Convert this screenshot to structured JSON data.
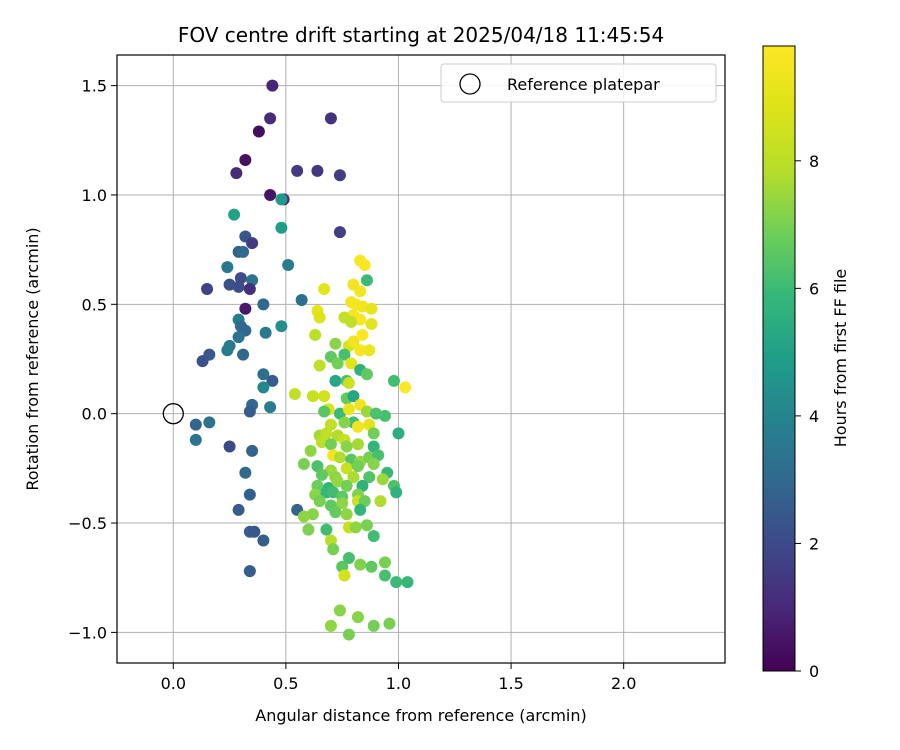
{
  "chart_data": {
    "type": "scatter",
    "title": "FOV centre drift starting at 2025/04/18 11:45:54",
    "xlabel": "Angular distance from reference (arcmin)",
    "ylabel": "Rotation from reference (arcmin)",
    "xlim": [
      -0.25,
      2.45
    ],
    "ylim": [
      -1.14,
      1.64
    ],
    "x_ticks": [
      0.0,
      0.5,
      1.0,
      1.5,
      2.0
    ],
    "x_tick_labels": [
      "0.0",
      "0.5",
      "1.0",
      "1.5",
      "2.0"
    ],
    "y_ticks": [
      -1.0,
      -0.5,
      0.0,
      0.5,
      1.0,
      1.5
    ],
    "y_tick_labels": [
      "−1.0",
      "−0.5",
      "0.0",
      "0.5",
      "1.0",
      "1.5"
    ],
    "grid": true,
    "legend": {
      "position": "top-right",
      "entries": [
        "Reference platepar"
      ]
    },
    "colorbar": {
      "label": "Hours from first FF file",
      "range": [
        0,
        9.8
      ],
      "ticks": [
        0,
        2,
        4,
        6,
        8
      ],
      "tick_labels": [
        "0",
        "2",
        "4",
        "6",
        "8"
      ],
      "colormap": "viridis"
    },
    "reference_point": {
      "x": 0.0,
      "y": 0.0
    },
    "points": [
      [
        0.44,
        1.5,
        0.9
      ],
      [
        0.43,
        1.35,
        1.1
      ],
      [
        0.38,
        1.29,
        0.3
      ],
      [
        0.7,
        1.35,
        1.3
      ],
      [
        0.32,
        1.16,
        0.4
      ],
      [
        0.55,
        1.11,
        1.5
      ],
      [
        0.64,
        1.11,
        1.4
      ],
      [
        0.74,
        1.09,
        1.6
      ],
      [
        0.28,
        1.1,
        1.1
      ],
      [
        0.43,
        1.0,
        0.5
      ],
      [
        0.49,
        0.98,
        1.0
      ],
      [
        0.48,
        0.98,
        4.8
      ],
      [
        0.27,
        0.91,
        5.1
      ],
      [
        0.48,
        0.85,
        4.9
      ],
      [
        0.74,
        0.83,
        1.7
      ],
      [
        0.32,
        0.81,
        2.4
      ],
      [
        0.35,
        0.78,
        1.6
      ],
      [
        0.29,
        0.74,
        2.7
      ],
      [
        0.31,
        0.74,
        3.0
      ],
      [
        0.51,
        0.68,
        3.6
      ],
      [
        0.24,
        0.67,
        3.5
      ],
      [
        0.3,
        0.62,
        2.1
      ],
      [
        0.35,
        0.61,
        3.4
      ],
      [
        0.25,
        0.59,
        2.2
      ],
      [
        0.29,
        0.58,
        2.1
      ],
      [
        0.34,
        0.57,
        1.2
      ],
      [
        0.15,
        0.57,
        1.8
      ],
      [
        0.4,
        0.5,
        3.0
      ],
      [
        0.57,
        0.52,
        3.2
      ],
      [
        0.32,
        0.48,
        0.6
      ],
      [
        0.29,
        0.43,
        3.8
      ],
      [
        0.3,
        0.4,
        3.0
      ],
      [
        0.32,
        0.38,
        2.9
      ],
      [
        0.48,
        0.4,
        4.4
      ],
      [
        0.41,
        0.37,
        3.6
      ],
      [
        0.29,
        0.35,
        3.3
      ],
      [
        0.25,
        0.31,
        3.8
      ],
      [
        0.24,
        0.29,
        3.7
      ],
      [
        0.31,
        0.27,
        2.9
      ],
      [
        0.16,
        0.27,
        2.4
      ],
      [
        0.13,
        0.24,
        2.2
      ],
      [
        0.4,
        0.18,
        3.2
      ],
      [
        0.44,
        0.15,
        2.6
      ],
      [
        0.4,
        0.12,
        4.1
      ],
      [
        0.35,
        0.04,
        3.0
      ],
      [
        0.43,
        0.03,
        3.7
      ],
      [
        0.34,
        0.01,
        2.6
      ],
      [
        0.16,
        -0.04,
        3.3
      ],
      [
        0.1,
        -0.05,
        2.8
      ],
      [
        0.1,
        -0.12,
        3.3
      ],
      [
        0.35,
        -0.17,
        2.8
      ],
      [
        0.25,
        -0.15,
        2.0
      ],
      [
        0.32,
        -0.27,
        3.0
      ],
      [
        0.34,
        -0.37,
        2.7
      ],
      [
        0.29,
        -0.44,
        2.6
      ],
      [
        0.34,
        -0.54,
        2.6
      ],
      [
        0.36,
        -0.54,
        2.4
      ],
      [
        0.4,
        -0.58,
        2.6
      ],
      [
        0.34,
        -0.72,
        2.6
      ],
      [
        0.55,
        -0.44,
        2.8
      ],
      [
        0.67,
        0.57,
        9.0
      ],
      [
        0.64,
        0.47,
        9.1
      ],
      [
        0.65,
        0.44,
        8.8
      ],
      [
        0.83,
        0.7,
        9.6
      ],
      [
        0.85,
        0.68,
        9.7
      ],
      [
        0.8,
        0.59,
        9.4
      ],
      [
        0.83,
        0.56,
        9.5
      ],
      [
        0.86,
        0.61,
        6.0
      ],
      [
        0.79,
        0.51,
        9.5
      ],
      [
        0.81,
        0.5,
        9.6
      ],
      [
        0.84,
        0.49,
        9.4
      ],
      [
        0.88,
        0.48,
        9.1
      ],
      [
        0.8,
        0.45,
        9.6
      ],
      [
        0.83,
        0.43,
        9.7
      ],
      [
        0.76,
        0.44,
        8.2
      ],
      [
        0.79,
        0.42,
        8.1
      ],
      [
        0.88,
        0.41,
        9.0
      ],
      [
        0.84,
        0.36,
        9.8
      ],
      [
        0.63,
        0.36,
        8.0
      ],
      [
        0.72,
        0.32,
        7.2
      ],
      [
        0.78,
        0.31,
        8.7
      ],
      [
        0.8,
        0.33,
        9.4
      ],
      [
        0.83,
        0.29,
        9.5
      ],
      [
        0.87,
        0.29,
        9.3
      ],
      [
        0.7,
        0.26,
        6.6
      ],
      [
        0.76,
        0.27,
        6.2
      ],
      [
        0.73,
        0.23,
        6.9
      ],
      [
        0.65,
        0.22,
        8.1
      ],
      [
        0.79,
        0.23,
        9.0
      ],
      [
        0.83,
        0.2,
        5.6
      ],
      [
        0.86,
        0.18,
        6.6
      ],
      [
        0.72,
        0.15,
        5.2
      ],
      [
        0.77,
        0.15,
        6.2
      ],
      [
        0.78,
        0.14,
        8.4
      ],
      [
        0.98,
        0.15,
        6.1
      ],
      [
        1.03,
        0.12,
        9.8
      ],
      [
        0.54,
        0.09,
        8.1
      ],
      [
        0.62,
        0.08,
        8.3
      ],
      [
        0.67,
        0.08,
        8.6
      ],
      [
        0.77,
        0.07,
        6.7
      ],
      [
        0.8,
        0.08,
        5.2
      ],
      [
        0.83,
        0.04,
        9.4
      ],
      [
        0.69,
        0.02,
        8.8
      ],
      [
        0.67,
        0.01,
        6.5
      ],
      [
        0.74,
        0.0,
        6.0
      ],
      [
        0.78,
        0.02,
        9.2
      ],
      [
        0.86,
        0.01,
        7.5
      ],
      [
        0.9,
        0.0,
        6.3
      ],
      [
        0.94,
        -0.01,
        6.2
      ],
      [
        0.8,
        -0.04,
        6.1
      ],
      [
        0.76,
        -0.04,
        7.2
      ],
      [
        0.7,
        -0.05,
        8.1
      ],
      [
        0.82,
        -0.06,
        9.4
      ],
      [
        0.87,
        -0.05,
        9.0
      ],
      [
        0.89,
        -0.09,
        6.9
      ],
      [
        1.0,
        -0.09,
        5.5
      ],
      [
        0.65,
        -0.1,
        7.6
      ],
      [
        0.68,
        -0.09,
        8.1
      ],
      [
        0.73,
        -0.1,
        7.8
      ],
      [
        0.76,
        -0.12,
        8.3
      ],
      [
        0.66,
        -0.13,
        8.0
      ],
      [
        0.7,
        -0.14,
        6.9
      ],
      [
        0.77,
        -0.15,
        7.2
      ],
      [
        0.82,
        -0.14,
        7.6
      ],
      [
        0.89,
        -0.15,
        5.8
      ],
      [
        0.61,
        -0.17,
        7.3
      ],
      [
        0.71,
        -0.19,
        9.5
      ],
      [
        0.74,
        -0.2,
        7.8
      ],
      [
        0.79,
        -0.21,
        6.5
      ],
      [
        0.83,
        -0.22,
        7.4
      ],
      [
        0.87,
        -0.2,
        7.0
      ],
      [
        0.91,
        -0.19,
        6.2
      ],
      [
        0.58,
        -0.23,
        7.0
      ],
      [
        0.64,
        -0.24,
        6.3
      ],
      [
        0.7,
        -0.26,
        7.5
      ],
      [
        0.77,
        -0.25,
        8.3
      ],
      [
        0.82,
        -0.24,
        6.9
      ],
      [
        0.89,
        -0.23,
        7.2
      ],
      [
        0.95,
        -0.27,
        5.9
      ],
      [
        0.66,
        -0.28,
        6.6
      ],
      [
        0.72,
        -0.29,
        7.3
      ],
      [
        0.8,
        -0.29,
        7.7
      ],
      [
        0.87,
        -0.29,
        6.4
      ],
      [
        0.93,
        -0.3,
        7.5
      ],
      [
        0.98,
        -0.33,
        6.3
      ],
      [
        0.64,
        -0.33,
        6.8
      ],
      [
        0.69,
        -0.34,
        5.8
      ],
      [
        0.73,
        -0.31,
        7.4
      ],
      [
        0.77,
        -0.33,
        6.9
      ],
      [
        0.84,
        -0.33,
        5.7
      ],
      [
        0.63,
        -0.37,
        7.2
      ],
      [
        0.68,
        -0.36,
        5.9
      ],
      [
        0.71,
        -0.36,
        6.1
      ],
      [
        0.75,
        -0.38,
        6.6
      ],
      [
        0.82,
        -0.37,
        7.1
      ],
      [
        0.99,
        -0.36,
        5.7
      ],
      [
        0.65,
        -0.4,
        7.0
      ],
      [
        0.7,
        -0.42,
        6.6
      ],
      [
        0.75,
        -0.41,
        7.3
      ],
      [
        0.82,
        -0.4,
        8.3
      ],
      [
        0.85,
        -0.4,
        6.8
      ],
      [
        0.92,
        -0.4,
        7.8
      ],
      [
        0.62,
        -0.46,
        7.2
      ],
      [
        0.72,
        -0.45,
        6.7
      ],
      [
        0.77,
        -0.46,
        7.3
      ],
      [
        0.83,
        -0.44,
        5.8
      ],
      [
        0.58,
        -0.47,
        7.3
      ],
      [
        0.6,
        -0.53,
        7.1
      ],
      [
        0.68,
        -0.53,
        6.1
      ],
      [
        0.78,
        -0.52,
        8.3
      ],
      [
        0.81,
        -0.52,
        7.3
      ],
      [
        0.86,
        -0.51,
        7.0
      ],
      [
        0.89,
        -0.56,
        6.1
      ],
      [
        0.7,
        -0.58,
        7.9
      ],
      [
        0.71,
        -0.62,
        7.0
      ],
      [
        0.78,
        -0.66,
        6.2
      ],
      [
        0.83,
        -0.69,
        7.1
      ],
      [
        0.88,
        -0.7,
        6.6
      ],
      [
        0.94,
        -0.68,
        7.0
      ],
      [
        0.75,
        -0.7,
        6.5
      ],
      [
        0.76,
        -0.74,
        8.6
      ],
      [
        0.94,
        -0.74,
        6.2
      ],
      [
        0.99,
        -0.77,
        6.0
      ],
      [
        1.04,
        -0.77,
        5.9
      ],
      [
        0.74,
        -0.9,
        7.2
      ],
      [
        0.7,
        -0.97,
        7.3
      ],
      [
        0.78,
        -1.01,
        7.0
      ],
      [
        0.82,
        -0.93,
        7.2
      ],
      [
        0.89,
        -0.97,
        6.9
      ],
      [
        0.96,
        -0.96,
        7.0
      ]
    ]
  }
}
